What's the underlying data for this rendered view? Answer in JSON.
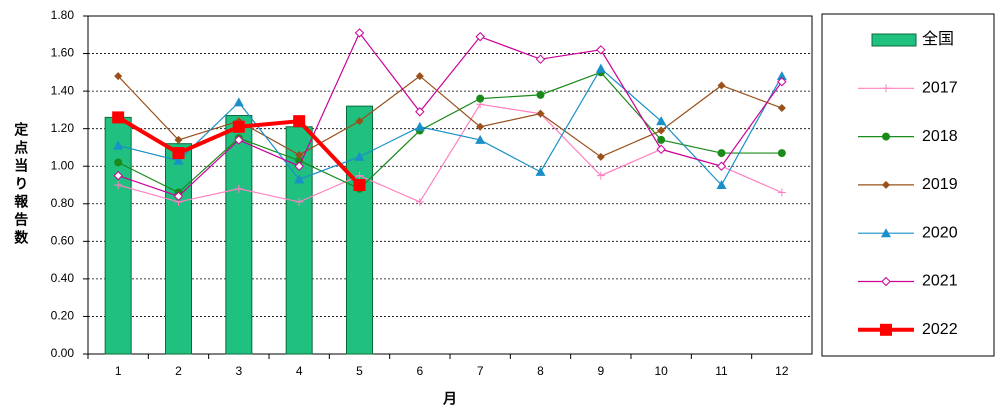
{
  "chart_data": {
    "type": "combo",
    "y_label": "定点当り報告数",
    "x_label": "月",
    "categories": [
      "1",
      "2",
      "3",
      "4",
      "5",
      "6",
      "7",
      "8",
      "9",
      "10",
      "11",
      "12"
    ],
    "ylim": [
      0,
      1.8
    ],
    "yticks": [
      {
        "value": 0,
        "label": "0.00"
      },
      {
        "value": 0.2,
        "label": "0.20"
      },
      {
        "value": 0.4,
        "label": "0.40"
      },
      {
        "value": 0.6,
        "label": "0.60"
      },
      {
        "value": 0.8,
        "label": "0.80"
      },
      {
        "value": 1.0,
        "label": "1.00"
      },
      {
        "value": 1.2,
        "label": "1.20"
      },
      {
        "value": 1.4,
        "label": "1.40"
      },
      {
        "value": 1.6,
        "label": "1.60"
      },
      {
        "value": 1.8,
        "label": "1.80"
      }
    ],
    "grid": true,
    "legend": "right",
    "series": [
      {
        "name": "全国",
        "type": "bar",
        "color": "#1fc080",
        "values": [
          1.26,
          1.12,
          1.27,
          1.21,
          1.32,
          null,
          null,
          null,
          null,
          null,
          null,
          null
        ]
      },
      {
        "name": "2017",
        "type": "line",
        "marker": "plus",
        "color": "#ff80c0",
        "values": [
          0.9,
          0.81,
          0.88,
          0.81,
          0.95,
          0.81,
          1.33,
          1.28,
          0.95,
          1.09,
          1.0,
          0.86
        ]
      },
      {
        "name": "2018",
        "type": "line",
        "marker": "circle",
        "color": "#1a8a1a",
        "values": [
          1.02,
          0.86,
          1.15,
          1.03,
          0.88,
          1.19,
          1.36,
          1.38,
          1.5,
          1.14,
          1.07,
          1.07
        ]
      },
      {
        "name": "2019",
        "type": "line",
        "marker": "diamond",
        "color": "#99501a",
        "values": [
          1.48,
          1.14,
          1.24,
          1.06,
          1.24,
          1.48,
          1.21,
          1.28,
          1.05,
          1.19,
          1.43,
          1.31
        ]
      },
      {
        "name": "2020",
        "type": "line",
        "marker": "triangle",
        "color": "#1a90c8",
        "values": [
          1.11,
          1.03,
          1.34,
          0.93,
          1.05,
          1.21,
          1.14,
          0.97,
          1.52,
          1.24,
          0.9,
          1.48
        ]
      },
      {
        "name": "2021",
        "type": "line",
        "marker": "diamond-open",
        "color": "#cc0099",
        "values": [
          0.95,
          0.84,
          1.14,
          1.0,
          1.71,
          1.29,
          1.69,
          1.57,
          1.62,
          1.09,
          1.0,
          1.45
        ]
      },
      {
        "name": "2022",
        "type": "line",
        "marker": "square",
        "width": 4,
        "color": "#ff0000",
        "values": [
          1.26,
          1.07,
          1.21,
          1.24,
          0.9,
          null,
          null,
          null,
          null,
          null,
          null,
          null
        ]
      }
    ]
  }
}
